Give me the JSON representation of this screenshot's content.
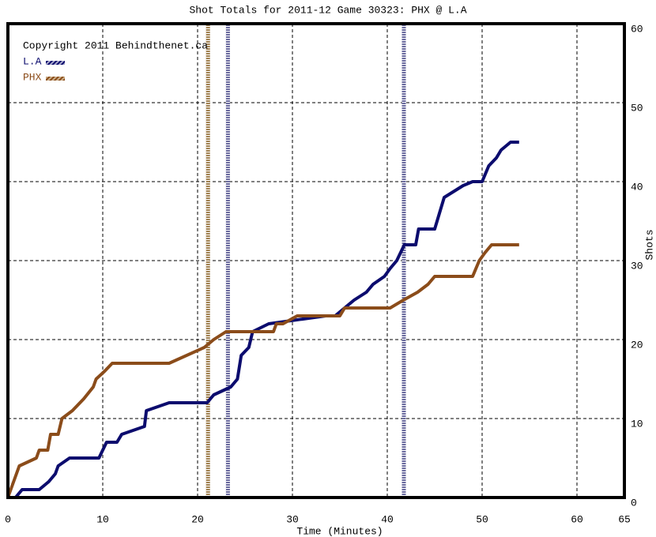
{
  "chart_data": {
    "type": "line",
    "title": "Shot Totals for 2011-12 Game 30323: PHX @ L.A",
    "x_label": "Time (Minutes)",
    "y_label": "Shots",
    "annotation": "Copyright 2011 Behindthenet.ca",
    "xlim": [
      0,
      65
    ],
    "xticks": [
      0,
      10,
      20,
      30,
      40,
      50,
      60,
      65
    ],
    "ylim": [
      0,
      60
    ],
    "yticks": [
      0,
      10,
      20,
      30,
      40,
      50,
      60
    ],
    "grid": true,
    "series": [
      {
        "name": "L.A",
        "color": "#0c0c6e",
        "x": [
          0,
          0.8,
          1.5,
          3.3,
          4.3,
          5,
          5.3,
          6.5,
          9.6,
          10.4,
          11.5,
          12,
          14.4,
          14.6,
          17,
          21,
          21.7,
          23.5,
          24.2,
          24.6,
          25.4,
          25.8,
          27.5,
          33.5,
          34.5,
          36.5,
          37.8,
          38.5,
          39.7,
          40.3,
          41,
          41.8,
          43,
          43.3,
          45,
          45.5,
          46,
          48,
          49,
          50,
          50.7,
          51.5,
          52,
          53,
          53.9
        ],
        "values": [
          0,
          0,
          1,
          1,
          2,
          3,
          4,
          5,
          5,
          7,
          7,
          8,
          9,
          11,
          12,
          12,
          13,
          14,
          15,
          18,
          19,
          21,
          22,
          23,
          23,
          25,
          26,
          27,
          28,
          29,
          30,
          32,
          32,
          34,
          34,
          36,
          38,
          39.5,
          40,
          40,
          42,
          43,
          44,
          45,
          45
        ]
      },
      {
        "name": "PHX",
        "color": "#8b4c1a",
        "x": [
          0,
          1.2,
          3,
          3.3,
          4.2,
          4.5,
          5.3,
          5.7,
          6.8,
          8,
          9,
          9.3,
          10.2,
          11,
          17,
          20.7,
          21.7,
          23,
          28,
          28.3,
          29,
          30.5,
          35,
          35.5,
          40.3,
          41.7,
          43.2,
          44.3,
          45,
          49,
          49.7,
          50.3,
          51,
          53.9
        ],
        "values": [
          0,
          4,
          5,
          6,
          6,
          8,
          8,
          10,
          11,
          12.5,
          14,
          15,
          16,
          17,
          17,
          19,
          20,
          21,
          21,
          22,
          22,
          23,
          23,
          24,
          24,
          25,
          26,
          27,
          28,
          28,
          30,
          31,
          32,
          32
        ]
      }
    ],
    "goal_lines": [
      {
        "x": 21.1,
        "color": "#a08050"
      },
      {
        "x": 23.2,
        "color": "#6a6a9e"
      },
      {
        "x": 41.75,
        "color": "#6a6a9e"
      }
    ]
  }
}
